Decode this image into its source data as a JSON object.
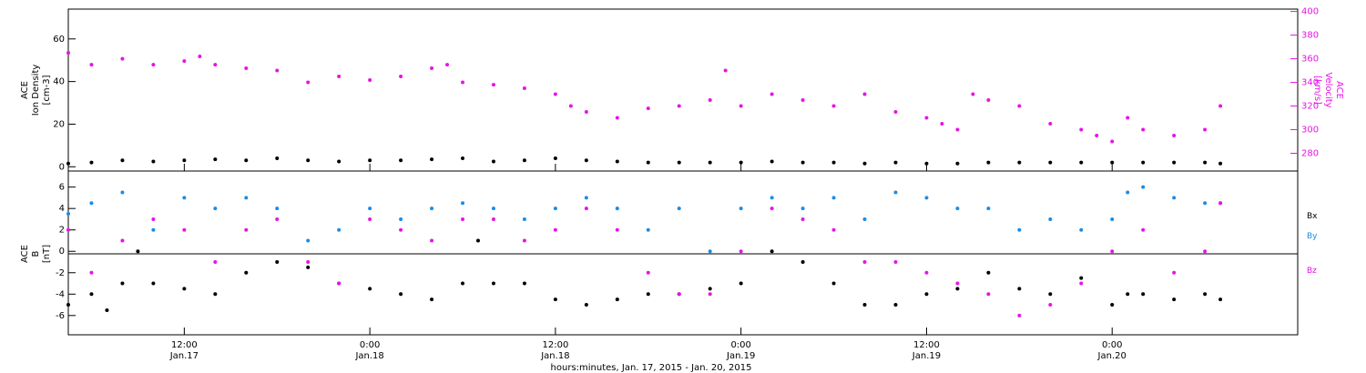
{
  "colors": {
    "black": "#000000",
    "magenta": "#e614e6",
    "blue": "#1a8ce6"
  },
  "xaxis": {
    "ticks": [
      {
        "time": "12:00",
        "date": "Jan.17",
        "hour": 12
      },
      {
        "time": "0:00",
        "date": "Jan.18",
        "hour": 24
      },
      {
        "time": "12:00",
        "date": "Jan.18",
        "hour": 36
      },
      {
        "time": "0:00",
        "date": "Jan.19",
        "hour": 48
      },
      {
        "time": "12:00",
        "date": "Jan.19",
        "hour": 60
      },
      {
        "time": "0:00",
        "date": "Jan.20",
        "hour": 72
      }
    ],
    "title": "hours:minutes, Jan. 17, 2015 - Jan. 20, 2015"
  },
  "chart_data": [
    {
      "type": "scatter",
      "panel": "top",
      "xlim_hours": [
        4.5,
        84
      ],
      "ylabel": [
        "ACE",
        "Ion Density",
        "[cm-3]"
      ],
      "ylim": [
        -2,
        74
      ],
      "yticks": [
        0,
        20,
        40,
        60
      ],
      "y2label": [
        "ACE",
        "Velocity",
        "[km/s]"
      ],
      "y2lim": [
        265,
        402
      ],
      "y2ticks": [
        280,
        300,
        320,
        340,
        360,
        380,
        400
      ],
      "series": [
        {
          "axis": "left",
          "color": "black",
          "x": [
            4.5,
            6,
            8,
            10,
            12,
            14,
            16,
            18,
            20,
            22,
            24,
            26,
            28,
            30,
            32,
            34,
            36,
            38,
            40,
            42,
            44,
            46,
            48,
            50,
            52,
            54,
            56,
            58,
            60,
            62,
            64,
            66,
            68,
            70,
            72,
            74,
            76,
            78,
            79
          ],
          "y": [
            1.5,
            2,
            3,
            2.5,
            3,
            3.5,
            3,
            4,
            3,
            2.5,
            3,
            3,
            3.5,
            4,
            2.5,
            3,
            4,
            3,
            2.5,
            2,
            2,
            2,
            2,
            2.5,
            2,
            2,
            1.5,
            2,
            1.5,
            1.5,
            2,
            2,
            2,
            2,
            2,
            2,
            2,
            2,
            1.5
          ]
        },
        {
          "axis": "right",
          "color": "magenta",
          "x": [
            4.5,
            6,
            8,
            10,
            12,
            13,
            14,
            16,
            18,
            20,
            22,
            24,
            26,
            28,
            29,
            30,
            32,
            34,
            36,
            37,
            38,
            40,
            42,
            44,
            46,
            47,
            48,
            50,
            52,
            54,
            56,
            58,
            60,
            61,
            62,
            63,
            64,
            66,
            68,
            70,
            71,
            72,
            73,
            74,
            76,
            78,
            79
          ],
          "y": [
            365,
            355,
            360,
            355,
            358,
            362,
            355,
            352,
            350,
            340,
            345,
            342,
            345,
            352,
            355,
            340,
            338,
            335,
            330,
            320,
            315,
            310,
            318,
            320,
            325,
            350,
            320,
            330,
            325,
            320,
            330,
            315,
            310,
            305,
            300,
            330,
            325,
            320,
            305,
            300,
            295,
            290,
            310,
            300,
            295,
            300,
            320
          ]
        }
      ]
    },
    {
      "type": "scatter",
      "panel": "bottom",
      "xlim_hours": [
        4.5,
        84
      ],
      "ylabel": [
        "ACE",
        "B",
        "[nT]"
      ],
      "ylim": [
        -7.8,
        7.5
      ],
      "yticks": [
        -6,
        -4,
        -2,
        0,
        2,
        4,
        6
      ],
      "legend": [
        "Bx",
        "By",
        "Bz"
      ],
      "series": [
        {
          "name": "Bx",
          "color": "black",
          "x": [
            4.5,
            6,
            7,
            8,
            9,
            10,
            12,
            14,
            16,
            18,
            20,
            22,
            24,
            26,
            28,
            30,
            31,
            32,
            34,
            36,
            38,
            40,
            42,
            44,
            46,
            48,
            50,
            52,
            54,
            56,
            58,
            60,
            62,
            64,
            66,
            68,
            70,
            72,
            73,
            74,
            76,
            78,
            79
          ],
          "y": [
            -5,
            -4,
            -5.5,
            -3,
            0,
            -3,
            -3.5,
            -4,
            -2,
            -1,
            -1.5,
            -3,
            -3.5,
            -4,
            -4.5,
            -3,
            1,
            -3,
            -3,
            -4.5,
            -5,
            -4.5,
            -4,
            -4,
            -3.5,
            -3,
            0,
            -1,
            -3,
            -5,
            -5,
            -4,
            -3.5,
            -2,
            -3.5,
            -4,
            -2.5,
            -5,
            -4,
            -4,
            -4.5,
            -4,
            -4.5
          ]
        },
        {
          "name": "By",
          "color": "blue",
          "x": [
            4.5,
            6,
            8,
            10,
            12,
            14,
            16,
            18,
            20,
            22,
            24,
            26,
            28,
            30,
            32,
            34,
            36,
            38,
            40,
            42,
            44,
            46,
            48,
            50,
            52,
            54,
            56,
            58,
            60,
            62,
            64,
            66,
            68,
            70,
            72,
            73,
            74,
            76,
            78,
            79
          ],
          "y": [
            3.5,
            4.5,
            5.5,
            2,
            5,
            4,
            5,
            4,
            1,
            2,
            4,
            3,
            4,
            4.5,
            4,
            3,
            4,
            5,
            4,
            2,
            4,
            0,
            4,
            5,
            4,
            5,
            3,
            5.5,
            5,
            4,
            4,
            2,
            3,
            2,
            3,
            5.5,
            6,
            5,
            4.5,
            4.5
          ]
        },
        {
          "name": "Bz",
          "color": "magenta",
          "x": [
            4.5,
            6,
            8,
            10,
            12,
            14,
            16,
            18,
            20,
            22,
            24,
            26,
            28,
            30,
            32,
            34,
            36,
            38,
            40,
            42,
            44,
            46,
            48,
            50,
            52,
            54,
            56,
            58,
            60,
            62,
            64,
            66,
            68,
            70,
            72,
            74,
            76,
            78,
            79
          ],
          "y": [
            2,
            -2,
            1,
            3,
            2,
            -1,
            2,
            3,
            -1,
            -3,
            3,
            2,
            1,
            3,
            3,
            1,
            2,
            4,
            2,
            -2,
            -4,
            -4,
            0,
            4,
            3,
            2,
            -1,
            -1,
            -2,
            -3,
            -4,
            -6,
            -5,
            -3,
            0,
            2,
            -2,
            0,
            4.5
          ]
        }
      ]
    }
  ]
}
